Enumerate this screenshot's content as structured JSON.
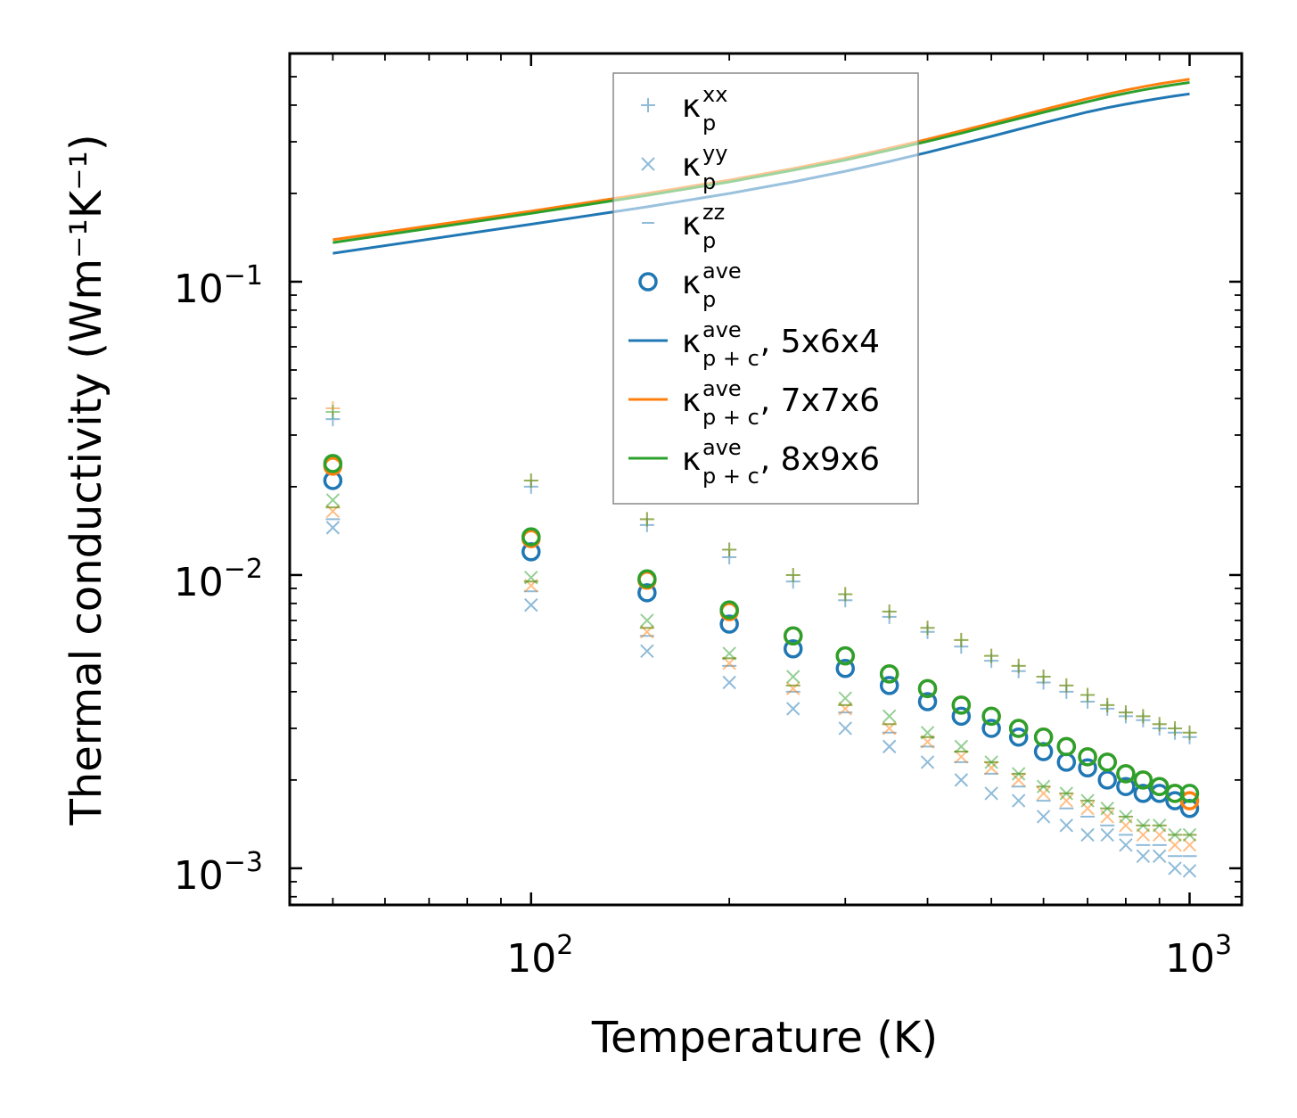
{
  "chart_data": {
    "type": "scatter",
    "title": "",
    "xlabel": "Temperature (K)",
    "ylabel": "Thermal conductivity (Wm⁻¹K⁻¹)",
    "xscale": "log",
    "yscale": "log",
    "xlim": [
      43,
      1200
    ],
    "ylim": [
      0.00075,
      0.6
    ],
    "xticks": [
      {
        "base": "10",
        "exp": "2"
      },
      {
        "base": "10",
        "exp": "3"
      }
    ],
    "yticks": [
      {
        "base": "10",
        "exp": "−3"
      },
      {
        "base": "10",
        "exp": "−2"
      },
      {
        "base": "10",
        "exp": "−1"
      }
    ],
    "legend_position": "top-center",
    "x": [
      50,
      100,
      150,
      200,
      250,
      300,
      350,
      400,
      450,
      500,
      550,
      600,
      650,
      700,
      750,
      800,
      850,
      900,
      950,
      1000
    ],
    "series": [
      {
        "name": "5x6x4",
        "color": "#1f77b4",
        "xx": [
          0.034,
          0.02,
          0.0148,
          0.0115,
          0.0095,
          0.0082,
          0.0072,
          0.0064,
          0.0057,
          0.0051,
          0.0047,
          0.0043,
          0.004,
          0.0037,
          0.0035,
          0.0033,
          0.0032,
          0.003,
          0.0029,
          0.0028
        ],
        "yy": [
          0.0145,
          0.0079,
          0.0055,
          0.0043,
          0.0035,
          0.003,
          0.0026,
          0.0023,
          0.002,
          0.0018,
          0.0017,
          0.0015,
          0.0014,
          0.0013,
          0.0013,
          0.0012,
          0.0011,
          0.0011,
          0.001,
          0.00098
        ],
        "zz": [
          0.0155,
          0.0088,
          0.0062,
          0.0049,
          0.004,
          0.0034,
          0.0029,
          0.0026,
          0.0023,
          0.0021,
          0.0019,
          0.0017,
          0.0016,
          0.0015,
          0.0014,
          0.0013,
          0.0012,
          0.0012,
          0.0011,
          0.0011
        ],
        "ave": [
          0.021,
          0.012,
          0.0087,
          0.0068,
          0.0056,
          0.0048,
          0.0042,
          0.0037,
          0.0033,
          0.003,
          0.0028,
          0.0025,
          0.0023,
          0.0022,
          0.002,
          0.0019,
          0.0018,
          0.0018,
          0.0017,
          0.0016
        ],
        "pc_ave": [
          0.125,
          0.157,
          0.18,
          0.2,
          0.219,
          0.238,
          0.257,
          0.276,
          0.295,
          0.313,
          0.331,
          0.348,
          0.364,
          0.379,
          0.392,
          0.403,
          0.413,
          0.422,
          0.43,
          0.437
        ]
      },
      {
        "name": "7x7x6",
        "color": "#ff7f0e",
        "xx": [
          0.037,
          0.021,
          0.0155,
          0.0122,
          0.01,
          0.0086,
          0.0075,
          0.0066,
          0.006,
          0.0053,
          0.0049,
          0.0045,
          0.0042,
          0.0039,
          0.0036,
          0.0034,
          0.0033,
          0.0031,
          0.003,
          0.0029
        ],
        "yy": [
          0.0165,
          0.0092,
          0.0064,
          0.005,
          0.0041,
          0.0035,
          0.003,
          0.0027,
          0.0024,
          0.0022,
          0.002,
          0.0018,
          0.0017,
          0.0016,
          0.0015,
          0.0014,
          0.0013,
          0.0013,
          0.0012,
          0.0012
        ],
        "zz": [
          0.017,
          0.0095,
          0.0066,
          0.0052,
          0.0042,
          0.0036,
          0.0031,
          0.0028,
          0.0025,
          0.0023,
          0.0021,
          0.0019,
          0.0018,
          0.0017,
          0.0016,
          0.0015,
          0.0014,
          0.0014,
          0.0013,
          0.0013
        ],
        "ave": [
          0.0235,
          0.0133,
          0.0096,
          0.0075,
          0.0062,
          0.0053,
          0.0046,
          0.0041,
          0.0036,
          0.0033,
          0.003,
          0.0028,
          0.0026,
          0.0024,
          0.0023,
          0.0021,
          0.002,
          0.0019,
          0.0018,
          0.0017
        ],
        "pc_ave": [
          0.139,
          0.174,
          0.2,
          0.222,
          0.243,
          0.264,
          0.285,
          0.306,
          0.327,
          0.347,
          0.367,
          0.386,
          0.404,
          0.421,
          0.436,
          0.45,
          0.462,
          0.473,
          0.482,
          0.49
        ]
      },
      {
        "name": "8x9x6",
        "color": "#2ca02c",
        "xx": [
          0.036,
          0.021,
          0.0155,
          0.0122,
          0.01,
          0.0086,
          0.0075,
          0.0066,
          0.006,
          0.0053,
          0.0049,
          0.0045,
          0.0042,
          0.0039,
          0.0036,
          0.0034,
          0.0033,
          0.0031,
          0.003,
          0.0029
        ],
        "yy": [
          0.018,
          0.0098,
          0.007,
          0.0054,
          0.0045,
          0.0038,
          0.0033,
          0.0029,
          0.0026,
          0.0023,
          0.0021,
          0.0019,
          0.0018,
          0.0017,
          0.0016,
          0.0015,
          0.0014,
          0.0014,
          0.0013,
          0.0013
        ],
        "zz": [
          0.017,
          0.0095,
          0.0066,
          0.0052,
          0.0042,
          0.0036,
          0.0031,
          0.0028,
          0.0025,
          0.0023,
          0.0021,
          0.0019,
          0.0018,
          0.0017,
          0.0016,
          0.0015,
          0.0014,
          0.0014,
          0.0013,
          0.0013
        ],
        "ave": [
          0.024,
          0.0135,
          0.0097,
          0.0076,
          0.0062,
          0.0053,
          0.0046,
          0.0041,
          0.0036,
          0.0033,
          0.003,
          0.0028,
          0.0026,
          0.0024,
          0.0023,
          0.0021,
          0.002,
          0.0019,
          0.0018,
          0.0018
        ],
        "pc_ave": [
          0.136,
          0.171,
          0.197,
          0.219,
          0.24,
          0.26,
          0.281,
          0.301,
          0.321,
          0.341,
          0.36,
          0.378,
          0.395,
          0.411,
          0.426,
          0.439,
          0.451,
          0.461,
          0.47,
          0.478
        ]
      }
    ],
    "legend": [
      {
        "kind": "plus",
        "symbol": "κ",
        "sup": "xx",
        "sub": "p",
        "suffix": ""
      },
      {
        "kind": "x",
        "symbol": "κ",
        "sup": "yy",
        "sub": "p",
        "suffix": ""
      },
      {
        "kind": "dash",
        "symbol": "κ",
        "sup": "zz",
        "sub": "p",
        "suffix": ""
      },
      {
        "kind": "circle",
        "symbol": "κ",
        "sup": "ave",
        "sub": "p",
        "suffix": ""
      },
      {
        "kind": "line",
        "color": "#1f77b4",
        "symbol": "κ",
        "sup": "ave",
        "sub": "p + c",
        "suffix": ", 5x6x4"
      },
      {
        "kind": "line",
        "color": "#ff7f0e",
        "symbol": "κ",
        "sup": "ave",
        "sub": "p + c",
        "suffix": ", 7x7x6"
      },
      {
        "kind": "line",
        "color": "#2ca02c",
        "symbol": "κ",
        "sup": "ave",
        "sub": "p + c",
        "suffix": ", 8x9x6"
      }
    ],
    "legend_marker_color": "#1f77b4"
  }
}
